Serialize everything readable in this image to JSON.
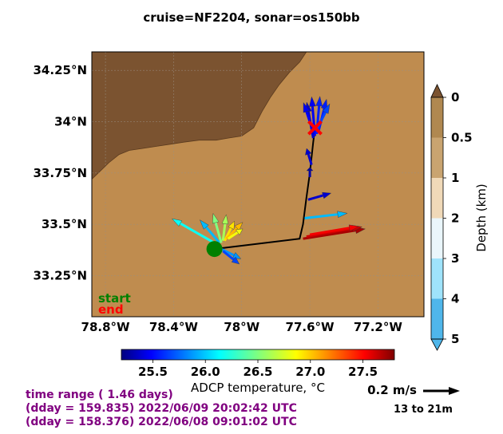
{
  "chart_data": {
    "type": "vector-map",
    "title": "cruise=NF2204,   sonar=os150bb",
    "map": {
      "lon_range": [
        -78.88,
        -76.93
      ],
      "lat_range": [
        33.05,
        34.34
      ],
      "xticks": [
        {
          "value": -78.8,
          "label": "78.8°W"
        },
        {
          "value": -78.4,
          "label": "78.4°W"
        },
        {
          "value": -78.0,
          "label": "78°W"
        },
        {
          "value": -77.6,
          "label": "77.6°W"
        },
        {
          "value": -77.2,
          "label": "77.2°W"
        }
      ],
      "yticks": [
        {
          "value": 34.25,
          "label": "34.25°N"
        },
        {
          "value": 34.0,
          "label": "34°N"
        },
        {
          "value": 33.75,
          "label": "33.75°N"
        },
        {
          "value": 33.5,
          "label": "33.5°N"
        },
        {
          "value": 33.25,
          "label": "33.25°N"
        }
      ],
      "grid": true,
      "land_color": "#7b5330",
      "water_color": "#bf8c4f",
      "coastline": [
        [
          -78.88,
          33.72
        ],
        [
          -78.83,
          33.76
        ],
        [
          -78.78,
          33.8
        ],
        [
          -78.72,
          33.84
        ],
        [
          -78.66,
          33.86
        ],
        [
          -78.58,
          33.87
        ],
        [
          -78.5,
          33.88
        ],
        [
          -78.42,
          33.89
        ],
        [
          -78.34,
          33.9
        ],
        [
          -78.25,
          33.91
        ],
        [
          -78.15,
          33.91
        ],
        [
          -78.08,
          33.92
        ],
        [
          -78.0,
          33.93
        ],
        [
          -77.93,
          33.97
        ],
        [
          -77.88,
          34.05
        ],
        [
          -77.83,
          34.12
        ],
        [
          -77.78,
          34.18
        ],
        [
          -77.72,
          34.24
        ],
        [
          -77.66,
          34.29
        ],
        [
          -77.62,
          34.34
        ]
      ],
      "ship_track": [
        [
          -78.16,
          33.38
        ],
        [
          -77.66,
          33.43
        ],
        [
          -77.64,
          33.5
        ],
        [
          -77.62,
          33.63
        ],
        [
          -77.6,
          33.75
        ],
        [
          -77.58,
          33.9
        ],
        [
          -77.57,
          33.97
        ]
      ],
      "start": {
        "lon": -78.16,
        "lat": 33.38,
        "label": "start",
        "color": "#008000"
      },
      "end": {
        "lon": -77.57,
        "lat": 33.97,
        "label": "end",
        "color": "#ff0000"
      }
    },
    "vectors": [
      {
        "lon": -78.14,
        "lat": 33.4,
        "u": -0.28,
        "v": 0.16,
        "temp": 26.2
      },
      {
        "lon": -78.13,
        "lat": 33.41,
        "u": -0.12,
        "v": 0.14,
        "temp": 26.0
      },
      {
        "lon": -78.12,
        "lat": 33.41,
        "u": -0.05,
        "v": 0.18,
        "temp": 26.5
      },
      {
        "lon": -78.11,
        "lat": 33.42,
        "u": 0.02,
        "v": 0.16,
        "temp": 26.6
      },
      {
        "lon": -78.1,
        "lat": 33.42,
        "u": 0.06,
        "v": 0.12,
        "temp": 26.9
      },
      {
        "lon": -78.09,
        "lat": 33.43,
        "u": 0.1,
        "v": 0.1,
        "temp": 27.0
      },
      {
        "lon": -78.08,
        "lat": 33.43,
        "u": 0.09,
        "v": 0.06,
        "temp": 26.8
      },
      {
        "lon": -78.12,
        "lat": 33.38,
        "u": 0.12,
        "v": -0.06,
        "temp": 25.9
      },
      {
        "lon": -78.11,
        "lat": 33.37,
        "u": 0.1,
        "v": -0.08,
        "temp": 25.7
      },
      {
        "lon": -77.64,
        "lat": 33.43,
        "u": 0.38,
        "v": 0.06,
        "temp": 27.7
      },
      {
        "lon": -77.62,
        "lat": 33.44,
        "u": 0.34,
        "v": 0.06,
        "temp": 27.6
      },
      {
        "lon": -77.6,
        "lat": 33.45,
        "u": 0.3,
        "v": 0.05,
        "temp": 27.5
      },
      {
        "lon": -77.63,
        "lat": 33.53,
        "u": 0.26,
        "v": 0.03,
        "temp": 26.0
      },
      {
        "lon": -77.61,
        "lat": 33.62,
        "u": 0.14,
        "v": 0.04,
        "temp": 25.4
      },
      {
        "lon": -77.6,
        "lat": 33.73,
        "u": 0.0,
        "v": 0.06,
        "temp": 25.3
      },
      {
        "lon": -77.59,
        "lat": 33.79,
        "u": -0.03,
        "v": 0.1,
        "temp": 25.4
      },
      {
        "lon": -77.58,
        "lat": 33.92,
        "u": -0.04,
        "v": 0.22,
        "temp": 25.4
      },
      {
        "lon": -77.57,
        "lat": 33.93,
        "u": -0.02,
        "v": 0.24,
        "temp": 25.5
      },
      {
        "lon": -77.56,
        "lat": 33.94,
        "u": 0.02,
        "v": 0.23,
        "temp": 25.6
      },
      {
        "lon": -77.55,
        "lat": 33.95,
        "u": 0.05,
        "v": 0.2,
        "temp": 25.6
      },
      {
        "lon": -77.56,
        "lat": 33.96,
        "u": 0.08,
        "v": 0.16,
        "temp": 25.7
      },
      {
        "lon": -77.58,
        "lat": 33.95,
        "u": -0.06,
        "v": 0.18,
        "temp": 25.5
      }
    ],
    "colorbar_temperature": {
      "label": "ADCP temperature, °C",
      "range": [
        25.2,
        27.8
      ],
      "ticks": [
        25.5,
        26.0,
        26.5,
        27.0,
        27.5
      ],
      "tick_labels": [
        "25.5",
        "26.0",
        "26.5",
        "27.0",
        "27.5"
      ],
      "colormap": "jet"
    },
    "colorbar_depth": {
      "label": "Depth (km)",
      "ticks": [
        "0",
        "0.5",
        "1",
        "2",
        "3",
        "4",
        "5"
      ],
      "colors": [
        "#b08850",
        "#c9a470",
        "#f0d9b8",
        "#eaf6fb",
        "#9fe3fb",
        "#4fb6ea"
      ],
      "extend_top_color": "#7b5330",
      "extend_bottom_color": "#4fb6ea"
    },
    "reference_vector": {
      "label": "0.2 m/s",
      "value": 0.2,
      "depth_range": "13 to 21m"
    }
  },
  "info": {
    "line1": "time range ( 1.46 days)",
    "line2": "(dday = 159.835) 2022/06/09 20:02:42 UTC",
    "line3": "(dday = 158.376) 2022/06/08 09:01:02 UTC"
  }
}
